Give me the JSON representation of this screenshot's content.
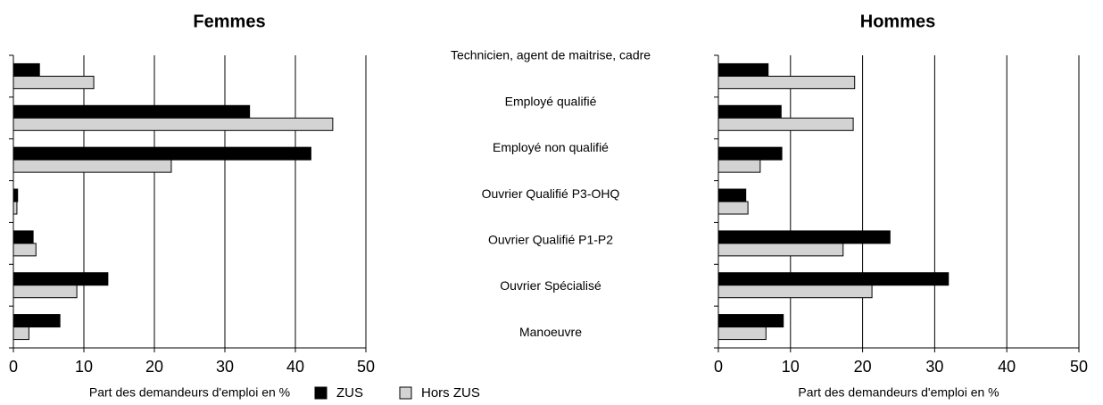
{
  "chart_data": [
    {
      "type": "bar",
      "orientation": "horizontal",
      "title": "Femmes",
      "xlabel": "Part des demandeurs d'emploi en %",
      "categories": [
        "Technicien, agent de maitrise, cadre",
        "Employé qualifié",
        "Employé non qualifié",
        "Ouvrier Qualifié P3-OHQ",
        "Ouvrier Qualifié P1-P2",
        "Ouvrier Spécialisé",
        "Manoeuvre"
      ],
      "series": [
        {
          "name": "ZUS",
          "color": "#000000",
          "values": [
            3.7,
            33.5,
            42.2,
            0.6,
            2.8,
            13.4,
            6.6
          ]
        },
        {
          "name": "Hors ZUS",
          "color": "#d3d3d3",
          "values": [
            11.4,
            45.3,
            22.4,
            0.5,
            3.2,
            9.0,
            2.2
          ]
        }
      ],
      "xlim": [
        0,
        50
      ],
      "xticks": [
        0,
        10,
        20,
        30,
        40,
        50
      ],
      "grid": true
    },
    {
      "type": "bar",
      "orientation": "horizontal",
      "title": "Hommes",
      "xlabel": "Part des demandeurs d'emploi en %",
      "series": [
        {
          "color": "#000000",
          "values": [
            6.9,
            8.7,
            8.8,
            3.8,
            23.8,
            31.9,
            9.0
          ]
        },
        {
          "color": "#d3d3d3",
          "values": [
            18.9,
            18.7,
            5.8,
            4.1,
            17.3,
            21.3,
            6.6
          ]
        }
      ],
      "xlim": [
        0,
        50
      ],
      "xticks": [
        0,
        10,
        20,
        30,
        40,
        50
      ],
      "grid": true
    }
  ]
}
